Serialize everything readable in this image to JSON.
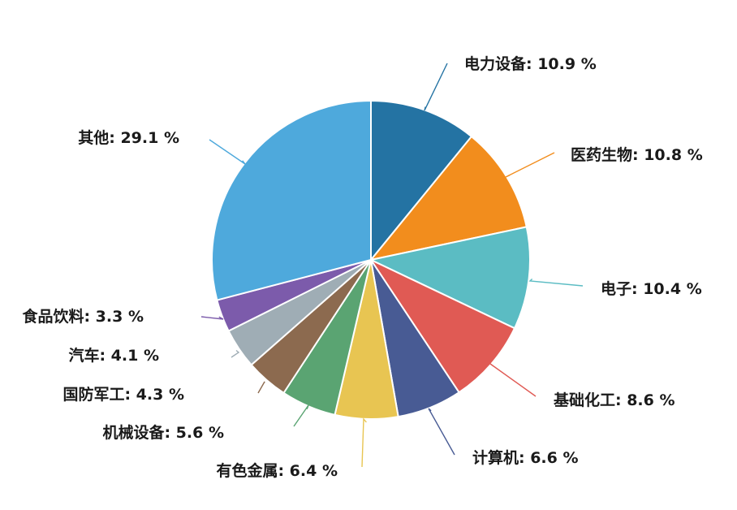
{
  "chart_data": {
    "type": "pie",
    "start_angle_deg": 0,
    "direction": "clockwise",
    "slices": [
      {
        "label": "电力设备",
        "value": 10.9,
        "text": "电力设备: 10.9 %",
        "color": "#2473a3"
      },
      {
        "label": "医药生物",
        "value": 10.8,
        "text": "医药生物: 10.8 %",
        "color": "#f28d1d"
      },
      {
        "label": "电子",
        "value": 10.4,
        "text": "电子: 10.4 %",
        "color": "#5bbcc3"
      },
      {
        "label": "基础化工",
        "value": 8.6,
        "text": "基础化工: 8.6 %",
        "color": "#e05a54"
      },
      {
        "label": "计算机",
        "value": 6.6,
        "text": "计算机: 6.6 %",
        "color": "#485b94"
      },
      {
        "label": "有色金属",
        "value": 6.4,
        "text": "有色金属: 6.4 %",
        "color": "#e8c552"
      },
      {
        "label": "机械设备",
        "value": 5.6,
        "text": "机械设备: 5.6 %",
        "color": "#5aa472"
      },
      {
        "label": "国防军工",
        "value": 4.3,
        "text": "国防军工: 4.3 %",
        "color": "#8c6a4f"
      },
      {
        "label": "汽车",
        "value": 4.1,
        "text": "汽车: 4.1 %",
        "color": "#9fadb5"
      },
      {
        "label": "食品饮料",
        "value": 3.3,
        "text": "食品饮料: 3.3 %",
        "color": "#7c5bab"
      },
      {
        "label": "其他",
        "value": 29.1,
        "text": "其他: 29.1 %",
        "color": "#4ea9dc"
      }
    ]
  }
}
